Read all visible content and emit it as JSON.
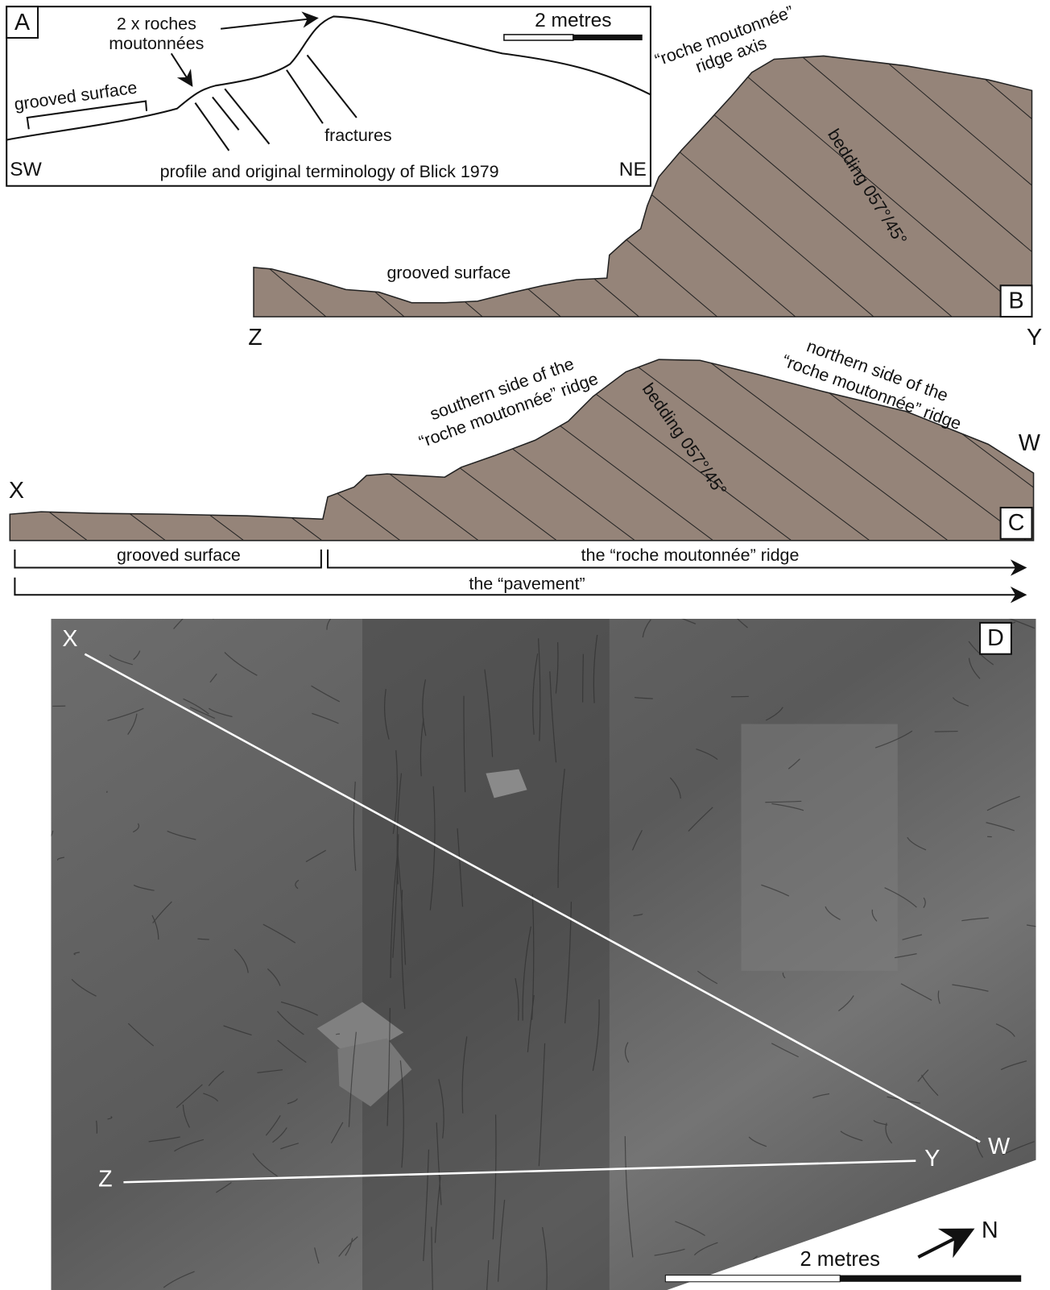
{
  "panel_a": {
    "label": "A",
    "arrow_note": [
      "2 x roches",
      "moutonnées"
    ],
    "scale_label": "2 metres",
    "grooved_surface": "grooved surface",
    "fractures": "fractures",
    "sw": "SW",
    "ne": "NE",
    "caption": "profile and original terminology of Blick 1979"
  },
  "panel_b": {
    "label": "B",
    "ridge_axis": [
      "“roche moutonnée”",
      "ridge axis"
    ],
    "bedding": "bedding 057°/45°",
    "grooved_surface": "grooved surface",
    "left_end": "Z",
    "right_end": "Y"
  },
  "panel_c": {
    "label": "C",
    "southern_side": [
      "southern side of the",
      "“roche moutonnée” ridge"
    ],
    "northern_side": [
      "northern side of the",
      "“roche moutonnée” ridge"
    ],
    "bedding": "bedding 057°/45°",
    "left_end": "X",
    "right_end": "W",
    "grooved_surface": "grooved surface",
    "ridge": "the “roche moutonnée” ridge",
    "pavement": "the “pavement”"
  },
  "panel_d": {
    "label": "D",
    "points": {
      "x": "X",
      "w": "W",
      "z": "Z",
      "y": "Y"
    },
    "north": "N",
    "scale_label": "2 metres"
  }
}
